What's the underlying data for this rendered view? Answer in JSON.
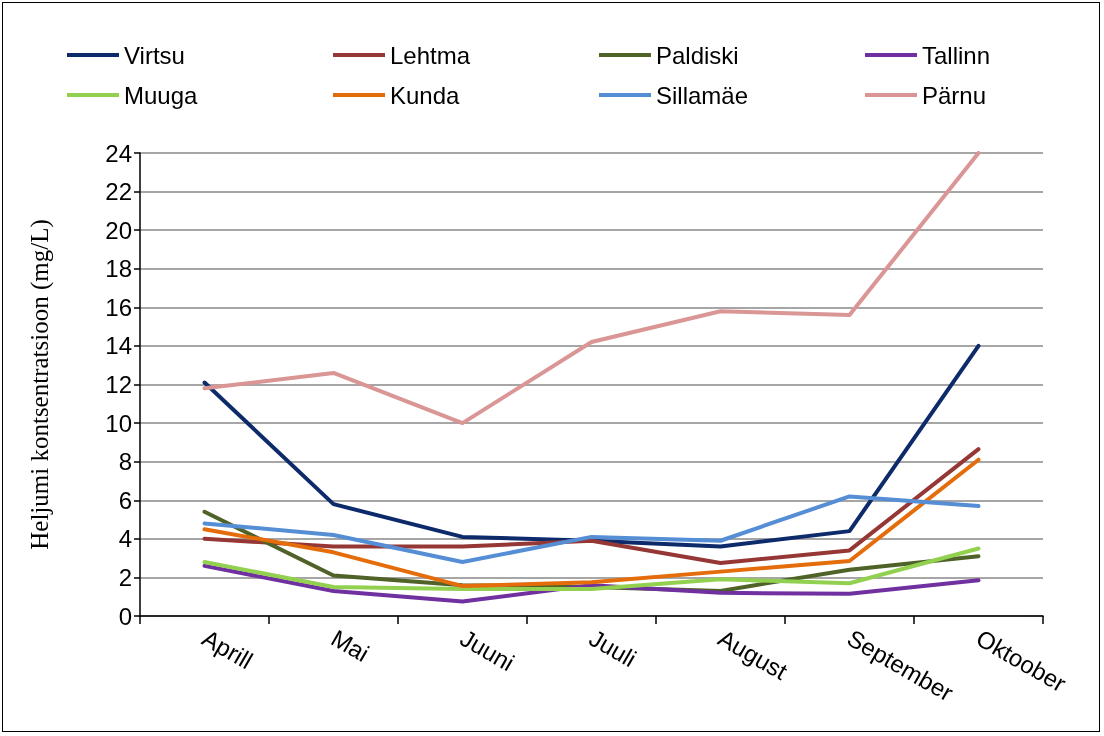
{
  "chart_data": {
    "type": "line",
    "ylabel": "Heljumi kontsentratsioon (mg/L)",
    "categories": [
      "Aprill",
      "Mai",
      "Juuni",
      "Juuli",
      "August",
      "September",
      "Oktoober"
    ],
    "series": [
      {
        "name": "Virtsu",
        "color": "#0d2a6b",
        "values": [
          12.1,
          5.8,
          4.1,
          3.9,
          3.6,
          4.4,
          14.0
        ]
      },
      {
        "name": "Lehtma",
        "color": "#953735",
        "values": [
          4.0,
          3.6,
          3.6,
          3.9,
          2.75,
          3.4,
          8.65
        ]
      },
      {
        "name": "Paldiski",
        "color": "#4f6228",
        "values": [
          5.4,
          2.1,
          1.6,
          1.5,
          1.3,
          2.4,
          3.1
        ]
      },
      {
        "name": "Tallinn",
        "color": "#7030a0",
        "values": [
          2.6,
          1.3,
          0.75,
          1.6,
          1.2,
          1.15,
          1.85
        ]
      },
      {
        "name": "Muuga",
        "color": "#92d050",
        "values": [
          2.8,
          1.5,
          1.4,
          1.4,
          1.9,
          1.7,
          3.5
        ]
      },
      {
        "name": "Kunda",
        "color": "#e46c0a",
        "values": [
          4.5,
          3.3,
          1.55,
          1.75,
          2.3,
          2.85,
          8.1
        ]
      },
      {
        "name": "Sillamäe",
        "color": "#558ed5",
        "values": [
          4.8,
          4.2,
          2.8,
          4.1,
          3.9,
          6.2,
          5.7
        ]
      },
      {
        "name": "Pärnu",
        "color": "#d99694",
        "values": [
          11.8,
          12.6,
          10.0,
          14.2,
          15.8,
          15.6,
          24.0
        ]
      }
    ],
    "ylim": [
      0,
      24
    ],
    "yticks": [
      0,
      2,
      4,
      6,
      8,
      10,
      12,
      14,
      16,
      18,
      20,
      22,
      24
    ],
    "grid": "y",
    "legend": "top",
    "marker": "none",
    "line_style": "solid"
  }
}
